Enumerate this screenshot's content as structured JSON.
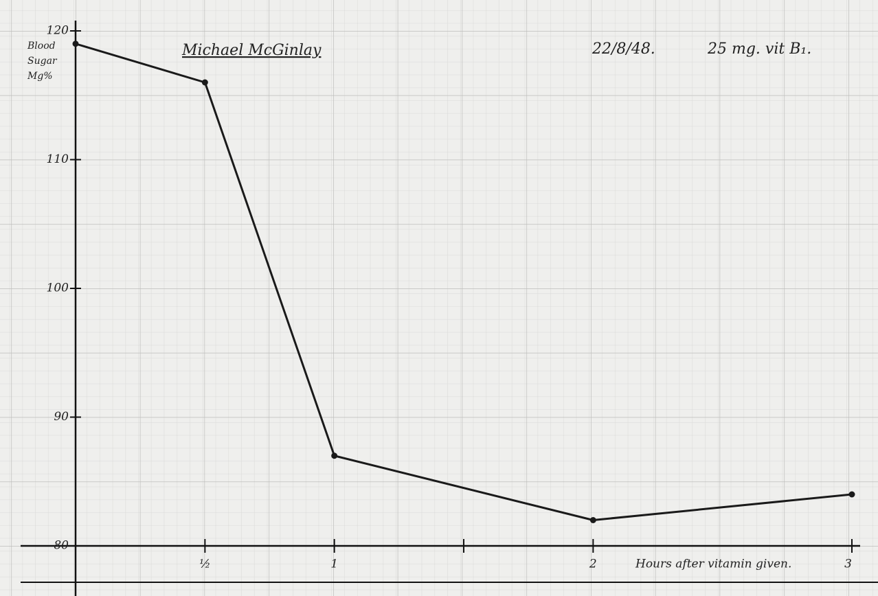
{
  "chart_data": {
    "type": "line",
    "title": "Michael McGinlay",
    "annotations": [
      "22/8/48.",
      "25 mg. vit B₁."
    ],
    "y_label": "Blood Sugar Mg%",
    "x_label": "Hours after vitamin given.",
    "x": [
      0,
      0.5,
      1,
      2,
      3
    ],
    "values": [
      119,
      116,
      87,
      82,
      84
    ],
    "color": "#1a1a1a",
    "xlim": [
      0,
      3
    ],
    "xticks": [
      {
        "value": 0.5,
        "label": "½"
      },
      1,
      {
        "value": 1.5,
        "label": null
      },
      2,
      3
    ],
    "ylim": [
      80,
      120
    ],
    "yticks": [
      80,
      90,
      100,
      110,
      120
    ],
    "grid": true
  }
}
